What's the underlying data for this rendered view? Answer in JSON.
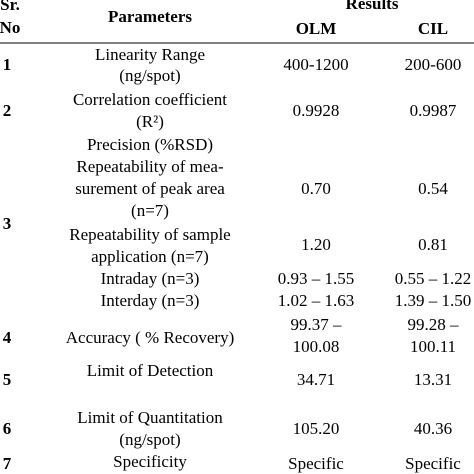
{
  "header": {
    "sr": "Sr.",
    "no": "No",
    "parameters": "Parameters",
    "results": "Results",
    "olm": "OLM",
    "cil": "CIL"
  },
  "rows": [
    {
      "no": "1",
      "parameter": [
        "Linearity Range",
        "(ng/spot)"
      ],
      "olm": "400-1200",
      "cil": "200-600"
    },
    {
      "no": "2",
      "parameter": [
        "Correlation coefficient",
        "(R²)"
      ],
      "olm": "0.9928",
      "cil": "0.9987"
    },
    {
      "no": "3",
      "parameter": [
        "Precision (%RSD)"
      ],
      "items": [
        {
          "parameter": [
            "Repeatability of mea-",
            "surement of peak area",
            "(n=7)"
          ],
          "olm": "0.70",
          "cil": "0.54"
        },
        {
          "parameter": [
            "Repeatability of sample",
            "application (n=7)"
          ],
          "olm": "1.20",
          "cil": "0.81"
        },
        {
          "parameter": [
            "Intraday (n=3)"
          ],
          "olm": "0.93 – 1.55",
          "cil": "0.55 – 1.22"
        },
        {
          "parameter": [
            "Interday (n=3)"
          ],
          "olm": "1.02 – 1.63",
          "cil": "1.39 – 1.50"
        }
      ]
    },
    {
      "no": "4",
      "parameter": [
        "Accuracy ( % Recovery)"
      ],
      "olm": [
        "99.37 –",
        "100.08"
      ],
      "cil": [
        "99.28 –",
        "100.11"
      ]
    },
    {
      "no": "5",
      "parameter": [
        "Limit of Detection"
      ],
      "olm": "34.71",
      "cil": "13.31"
    },
    {
      "no": "6",
      "parameter": [
        "Limit of Quantitation",
        "(ng/spot)"
      ],
      "olm": "105.20",
      "cil": "40.36"
    },
    {
      "no": "7",
      "parameter": [
        "Specificity"
      ],
      "olm": "Specific",
      "cil": "Specific"
    }
  ]
}
